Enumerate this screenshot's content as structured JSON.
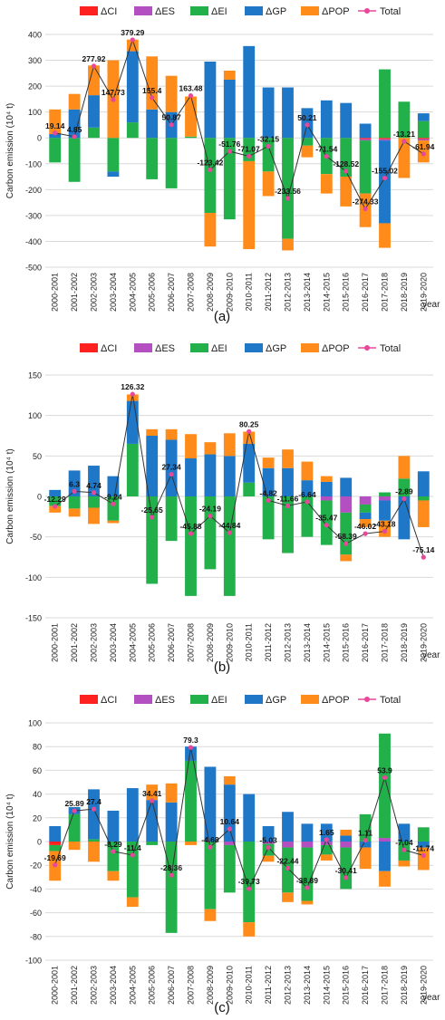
{
  "colors": {
    "CI": "#ff2020",
    "ES": "#b34fc1",
    "EI": "#22b04b",
    "GP": "#1f77c8",
    "POP": "#ff8c1a",
    "total": "#e8489a",
    "total_line": "#333333"
  },
  "years": [
    "2000-2001",
    "2001-2002",
    "2002-2003",
    "2003-2004",
    "2004-2005",
    "2005-2006",
    "2006-2007",
    "2007-2008",
    "2008-2009",
    "2009-2010",
    "2010-2011",
    "2011-2012",
    "2012-2013",
    "2013-2014",
    "2014-2015",
    "2015-2016",
    "2016-2017",
    "2017-2018",
    "2018-2019",
    "2019-2020"
  ],
  "chart_data": [
    {
      "type": "bar",
      "stacked": true,
      "panel_label": "(a)",
      "ylabel": "Carbon emission (10⁴ t)",
      "xlabel": "year",
      "ylim": [
        -500,
        400
      ],
      "yticks": [
        400,
        300,
        200,
        100,
        0,
        -100,
        -200,
        -300,
        -400,
        -500
      ],
      "grid": true,
      "legend": [
        "ΔCI",
        "ΔES",
        "ΔEI",
        "ΔGP",
        "ΔPOP",
        "Total"
      ],
      "legend_position": "top",
      "series": [
        {
          "name": "ΔCI",
          "key": "CI",
          "values": [
            0,
            0,
            0,
            0,
            0,
            0,
            0,
            0,
            0,
            0,
            0,
            0,
            0,
            0,
            0,
            0,
            -5,
            -5,
            0,
            -5
          ]
        },
        {
          "name": "ΔES",
          "key": "ES",
          "values": [
            0,
            0,
            0,
            0,
            0,
            0,
            0,
            0,
            0,
            0,
            0,
            0,
            0,
            0,
            0,
            0,
            -5,
            -5,
            0,
            -5
          ]
        },
        {
          "name": "ΔEI",
          "key": "EI",
          "values": [
            -95,
            -170,
            40,
            -130,
            60,
            -160,
            -195,
            5,
            -290,
            -315,
            -90,
            -130,
            -390,
            -30,
            -140,
            -150,
            -205,
            265,
            140,
            65
          ]
        },
        {
          "name": "ΔGP",
          "key": "GP",
          "values": [
            15,
            110,
            125,
            -20,
            275,
            110,
            100,
            0,
            295,
            225,
            355,
            195,
            195,
            115,
            145,
            135,
            55,
            -320,
            0,
            30
          ]
        },
        {
          "name": "ΔPOP",
          "key": "POP",
          "values": [
            95,
            60,
            115,
            300,
            45,
            205,
            140,
            155,
            -130,
            35,
            -340,
            -95,
            -45,
            -45,
            -75,
            -115,
            -130,
            -95,
            -155,
            -85
          ]
        }
      ],
      "totals": [
        {
          "value": 19.14,
          "label": "19.14"
        },
        {
          "value": 4.85,
          "label": "4.85"
        },
        {
          "value": 277.92,
          "label": "277.92"
        },
        {
          "value": 147.73,
          "label": "147.73"
        },
        {
          "value": 379.29,
          "label": "379.29"
        },
        {
          "value": 155.4,
          "label": "155.4"
        },
        {
          "value": 50.87,
          "label": "50.87"
        },
        {
          "value": 163.48,
          "label": "163.48"
        },
        {
          "value": -123.42,
          "label": "-123.42"
        },
        {
          "value": -51.76,
          "label": "-51.76"
        },
        {
          "value": -71.07,
          "label": "-71.07"
        },
        {
          "value": -32.15,
          "label": "-32.15"
        },
        {
          "value": -233.56,
          "label": "-233.56"
        },
        {
          "value": 50.21,
          "label": "50.21"
        },
        {
          "value": -71.54,
          "label": "-71.54"
        },
        {
          "value": -128.52,
          "label": "-128.52"
        },
        {
          "value": -274.33,
          "label": "-274.33"
        },
        {
          "value": -155.02,
          "label": "-155.02"
        },
        {
          "value": -13.21,
          "label": "-13.21"
        },
        {
          "value": -61.94,
          "label": "-61.94"
        }
      ]
    },
    {
      "type": "bar",
      "stacked": true,
      "panel_label": "(b)",
      "ylabel": "Carbon emission (10⁴ t)",
      "xlabel": "year",
      "ylim": [
        -150,
        150
      ],
      "yticks": [
        150,
        100,
        50,
        0,
        -50,
        -100,
        -150
      ],
      "grid": true,
      "legend": [
        "ΔCI",
        "ΔES",
        "ΔEI",
        "ΔGP",
        "ΔPOP",
        "Total"
      ],
      "legend_position": "top",
      "series": [
        {
          "name": "ΔCI",
          "key": "CI",
          "values": [
            0,
            0,
            0,
            0,
            0,
            0,
            0,
            0,
            0,
            0,
            0,
            0,
            0,
            0,
            0,
            0,
            0,
            0,
            0,
            0
          ]
        },
        {
          "name": "ΔES",
          "key": "ES",
          "values": [
            0,
            0,
            0,
            0,
            0,
            0,
            0,
            0,
            0,
            0,
            0,
            0,
            0,
            0,
            -5,
            -20,
            -10,
            -5,
            0,
            0
          ]
        },
        {
          "name": "ΔEI",
          "key": "EI",
          "values": [
            -12,
            -15,
            -14,
            -30,
            65,
            -108,
            -55,
            -123,
            -90,
            -123,
            17,
            -53,
            -70,
            -50,
            -55,
            -52,
            -10,
            5,
            22,
            -5
          ]
        },
        {
          "name": "ΔGP",
          "key": "GP",
          "values": [
            8,
            32,
            38,
            25,
            53,
            75,
            70,
            47,
            52,
            50,
            48,
            35,
            35,
            20,
            18,
            23,
            -8,
            -25,
            -53,
            31
          ]
        },
        {
          "name": "ΔPOP",
          "key": "POP",
          "values": [
            -8,
            -10,
            -20,
            -3,
            8,
            8,
            13,
            30,
            15,
            28,
            15,
            13,
            23,
            23,
            7,
            -8,
            -10,
            -20,
            28,
            -33
          ]
        }
      ],
      "totals": [
        {
          "value": -12.29,
          "label": "-12.29"
        },
        {
          "value": 6.3,
          "label": "6.3"
        },
        {
          "value": 4.74,
          "label": "4.74"
        },
        {
          "value": -9.24,
          "label": "-9.24"
        },
        {
          "value": 126.32,
          "label": "126.32"
        },
        {
          "value": -25.65,
          "label": "-25.65"
        },
        {
          "value": 27.34,
          "label": "27.34"
        },
        {
          "value": -45.88,
          "label": "-45.88"
        },
        {
          "value": -24.19,
          "label": "-24.19"
        },
        {
          "value": -44.84,
          "label": "-44.84"
        },
        {
          "value": 80.25,
          "label": "80.25"
        },
        {
          "value": -4.82,
          "label": "-4.82"
        },
        {
          "value": -11.66,
          "label": "-11.66"
        },
        {
          "value": -6.64,
          "label": "-6.64"
        },
        {
          "value": -35.47,
          "label": "-35.47"
        },
        {
          "value": -58.39,
          "label": "-58.39"
        },
        {
          "value": -46.02,
          "label": "-46.02"
        },
        {
          "value": -43.18,
          "label": "-43.18"
        },
        {
          "value": -2.89,
          "label": "-2.89"
        },
        {
          "value": -75.14,
          "label": "-75.14"
        }
      ]
    },
    {
      "type": "bar",
      "stacked": true,
      "panel_label": "(c)",
      "ylabel": "Carbon emission (10⁴ t)",
      "xlabel": "year",
      "ylim": [
        -100,
        100
      ],
      "yticks": [
        100,
        80,
        60,
        40,
        20,
        0,
        -20,
        -40,
        -60,
        -80,
        -100
      ],
      "grid": true,
      "legend": [
        "ΔCI",
        "ΔES",
        "ΔEI",
        "ΔGP",
        "ΔPOP",
        "Total"
      ],
      "legend_position": "top",
      "series": [
        {
          "name": "ΔCI",
          "key": "CI",
          "values": [
            -3,
            0,
            0,
            0,
            0,
            0,
            0,
            0,
            0,
            0,
            0,
            0,
            0,
            0,
            0,
            0,
            0,
            0,
            0,
            0
          ]
        },
        {
          "name": "ΔES",
          "key": "ES",
          "values": [
            0,
            0,
            0,
            0,
            0,
            0,
            0,
            0,
            0,
            -3,
            0,
            -2,
            -5,
            -5,
            -3,
            -5,
            0,
            3,
            0,
            0
          ]
        },
        {
          "name": "ΔEI",
          "key": "EI",
          "values": [
            -5,
            23,
            2,
            -25,
            -47,
            -3,
            -77,
            68,
            -57,
            -40,
            -68,
            -10,
            -38,
            -45,
            -8,
            -35,
            23,
            88,
            -16,
            12
          ]
        },
        {
          "name": "ΔGP",
          "key": "GP",
          "values": [
            13,
            6,
            42,
            26,
            45,
            35,
            33,
            12,
            63,
            48,
            40,
            13,
            25,
            15,
            15,
            5,
            -5,
            -25,
            15,
            -5
          ]
        },
        {
          "name": "ΔPOP",
          "key": "POP",
          "values": [
            -25,
            -7,
            -17,
            -8,
            -8,
            13,
            16,
            -3,
            -10,
            7,
            -12,
            -5,
            -8,
            -3,
            -5,
            5,
            -18,
            -13,
            -5,
            -19
          ]
        }
      ],
      "totals": [
        {
          "value": -19.69,
          "label": "-19.69"
        },
        {
          "value": 25.89,
          "label": "25.89"
        },
        {
          "value": 27.4,
          "label": "27.4"
        },
        {
          "value": -8.29,
          "label": "-8.29"
        },
        {
          "value": -11.4,
          "label": "-11.4"
        },
        {
          "value": 34.41,
          "label": "34.41"
        },
        {
          "value": -28.36,
          "label": "-28.36"
        },
        {
          "value": 79.3,
          "label": "79.3"
        },
        {
          "value": -4.68,
          "label": "-4.68"
        },
        {
          "value": 10.64,
          "label": "10.64"
        },
        {
          "value": -39.73,
          "label": "-39.73"
        },
        {
          "value": -5.03,
          "label": "-5.03"
        },
        {
          "value": -22.44,
          "label": "-22.44"
        },
        {
          "value": -38.89,
          "label": "-38.89"
        },
        {
          "value": 1.65,
          "label": "1.65"
        },
        {
          "value": -30.41,
          "label": "-30.41"
        },
        {
          "value": 1.11,
          "label": "1.11"
        },
        {
          "value": 53.9,
          "label": "53.9"
        },
        {
          "value": -7.04,
          "label": "-7.04"
        },
        {
          "value": -11.74,
          "label": "-11.74"
        }
      ]
    }
  ]
}
